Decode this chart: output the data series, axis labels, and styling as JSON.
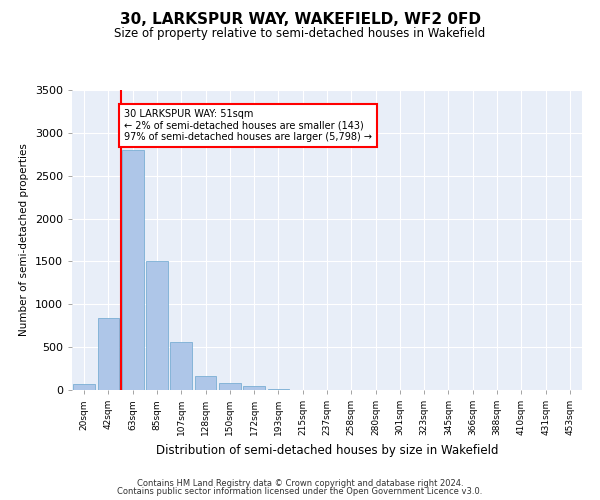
{
  "title": "30, LARKSPUR WAY, WAKEFIELD, WF2 0FD",
  "subtitle": "Size of property relative to semi-detached houses in Wakefield",
  "xlabel": "Distribution of semi-detached houses by size in Wakefield",
  "ylabel": "Number of semi-detached properties",
  "categories": [
    "20sqm",
    "42sqm",
    "63sqm",
    "85sqm",
    "107sqm",
    "128sqm",
    "150sqm",
    "172sqm",
    "193sqm",
    "215sqm",
    "237sqm",
    "258sqm",
    "280sqm",
    "301sqm",
    "323sqm",
    "345sqm",
    "366sqm",
    "388sqm",
    "410sqm",
    "431sqm",
    "453sqm"
  ],
  "values": [
    75,
    840,
    2800,
    1500,
    560,
    160,
    80,
    45,
    15,
    0,
    0,
    0,
    0,
    0,
    0,
    0,
    0,
    0,
    0,
    0,
    0
  ],
  "bar_color": "#aec6e8",
  "bar_edge_color": "#7aafd4",
  "annotation_line1": "30 LARKSPUR WAY: 51sqm",
  "annotation_line2": "← 2% of semi-detached houses are smaller (143)",
  "annotation_line3": "97% of semi-detached houses are larger (5,798) →",
  "ylim": [
    0,
    3500
  ],
  "yticks": [
    0,
    500,
    1000,
    1500,
    2000,
    2500,
    3000,
    3500
  ],
  "background_color": "#e8eef8",
  "footer1": "Contains HM Land Registry data © Crown copyright and database right 2024.",
  "footer2": "Contains public sector information licensed under the Open Government Licence v3.0."
}
